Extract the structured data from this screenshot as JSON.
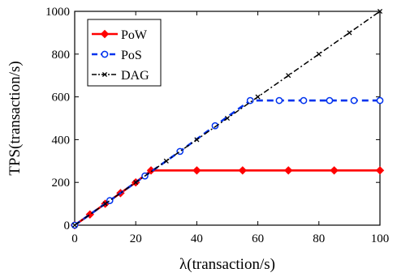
{
  "chart_data": {
    "type": "line",
    "xlabel": "λ(transaction/s)",
    "ylabel": "TPS(transaction/s)",
    "xlim": [
      0,
      100
    ],
    "ylim": [
      0,
      1000
    ],
    "x_ticks": [
      "0",
      "20",
      "40",
      "60",
      "80",
      "100"
    ],
    "y_ticks": [
      "0",
      "200",
      "400",
      "600",
      "800",
      "1000"
    ],
    "grid": false,
    "legend_position": "top-left",
    "series": [
      {
        "name": "PoW",
        "color": "#ff0000",
        "line_style": "solid",
        "marker": "diamond",
        "x": [
          0,
          5,
          10,
          15,
          20,
          25,
          40,
          55,
          70,
          85,
          100
        ],
        "y": [
          0,
          50,
          100,
          150,
          200,
          256,
          256,
          256,
          256,
          256,
          256
        ]
      },
      {
        "name": "PoS",
        "color": "#0033ee",
        "line_style": "dashed",
        "marker": "circle",
        "x": [
          0,
          11.5,
          23,
          34.5,
          46,
          57.5,
          67,
          75,
          83.5,
          91.5,
          100
        ],
        "y": [
          0,
          115,
          230,
          345,
          465,
          583,
          583,
          583,
          583,
          583,
          583
        ]
      },
      {
        "name": "DAG",
        "color": "#000000",
        "line_style": "dashdot",
        "marker": "x",
        "x": [
          0,
          10,
          20,
          30,
          40,
          50,
          60,
          70,
          80,
          90,
          100
        ],
        "y": [
          0,
          100,
          200,
          300,
          400,
          500,
          600,
          700,
          800,
          900,
          1000
        ]
      }
    ]
  }
}
